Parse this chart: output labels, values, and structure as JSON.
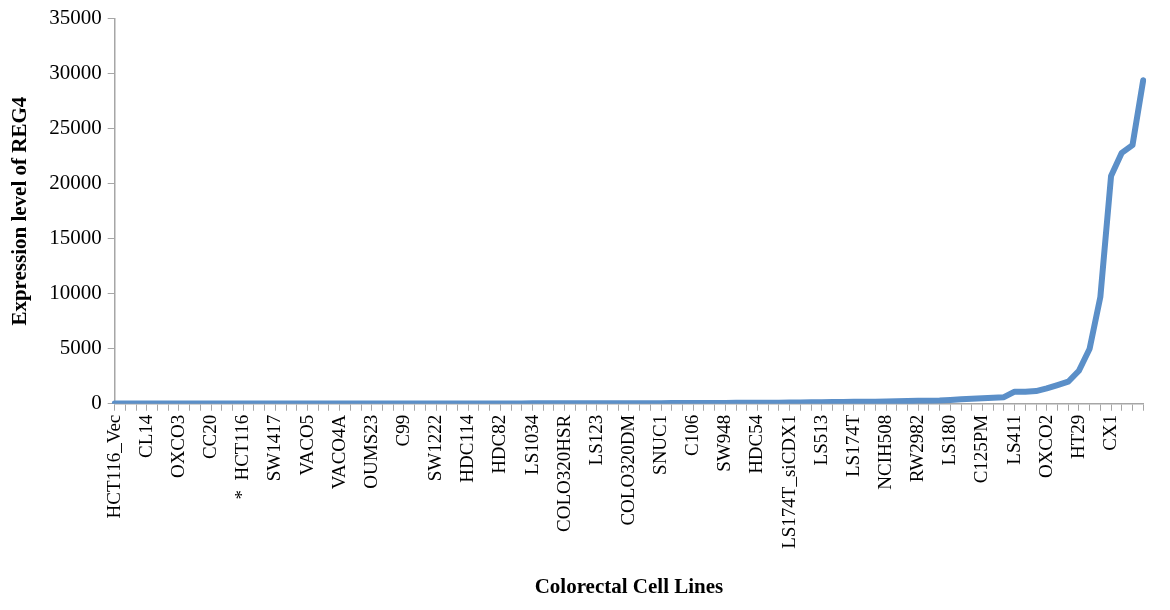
{
  "chart_data": {
    "type": "line",
    "xlabel": "Colorectal Cell Lines",
    "ylabel": "Expression level of REG4",
    "categories": [
      "HCT116_Vec",
      null,
      null,
      "CL14",
      null,
      null,
      "OXCO3",
      null,
      null,
      "CC20",
      null,
      null,
      "*  HCT116",
      null,
      null,
      "SW1417",
      null,
      null,
      "VACO5",
      null,
      null,
      "VACO4A",
      null,
      null,
      "OUMS23",
      null,
      null,
      "C99",
      null,
      null,
      "SW1222",
      null,
      null,
      "HDC114",
      null,
      null,
      "HDC82",
      null,
      null,
      "LS1034",
      null,
      null,
      "COLO320HSR",
      null,
      null,
      "LS123",
      null,
      null,
      "COLO320DM",
      null,
      null,
      "SNUC1",
      null,
      null,
      "C106",
      null,
      null,
      "SW948",
      null,
      null,
      "HDC54",
      null,
      null,
      "LS174T_siCDX1",
      null,
      null,
      "LS513",
      null,
      null,
      "LS174T",
      null,
      null,
      "NCIH508",
      null,
      null,
      "RW2982",
      null,
      null,
      "LS180",
      null,
      null,
      "C125PM",
      null,
      null,
      "LS411",
      null,
      null,
      "OXCO2",
      null,
      null,
      "HT29",
      null,
      null,
      "CX1",
      null,
      null,
      null
    ],
    "series": [
      {
        "color": "#5b8fc8",
        "values": [
          10,
          10,
          10,
          10,
          10,
          10,
          10,
          10,
          10,
          10,
          10,
          10,
          10,
          10,
          10,
          10,
          10,
          15,
          15,
          15,
          15,
          15,
          15,
          15,
          20,
          20,
          20,
          20,
          20,
          20,
          25,
          25,
          25,
          25,
          30,
          30,
          30,
          30,
          30,
          35,
          35,
          35,
          40,
          40,
          40,
          45,
          45,
          50,
          50,
          50,
          55,
          55,
          60,
          60,
          65,
          70,
          70,
          75,
          80,
          85,
          90,
          95,
          100,
          110,
          120,
          130,
          140,
          150,
          160,
          170,
          180,
          190,
          200,
          220,
          240,
          260,
          280,
          300,
          350,
          400,
          450,
          500,
          550,
          600,
          1100,
          1100,
          1150,
          1400,
          1700,
          2000,
          3000,
          5000,
          9700,
          20700,
          22800,
          23500,
          29400
        ]
      }
    ],
    "ylim": [
      0,
      35000
    ],
    "yticks": [
      0,
      5000,
      10000,
      15000,
      20000,
      25000,
      30000,
      35000
    ]
  }
}
